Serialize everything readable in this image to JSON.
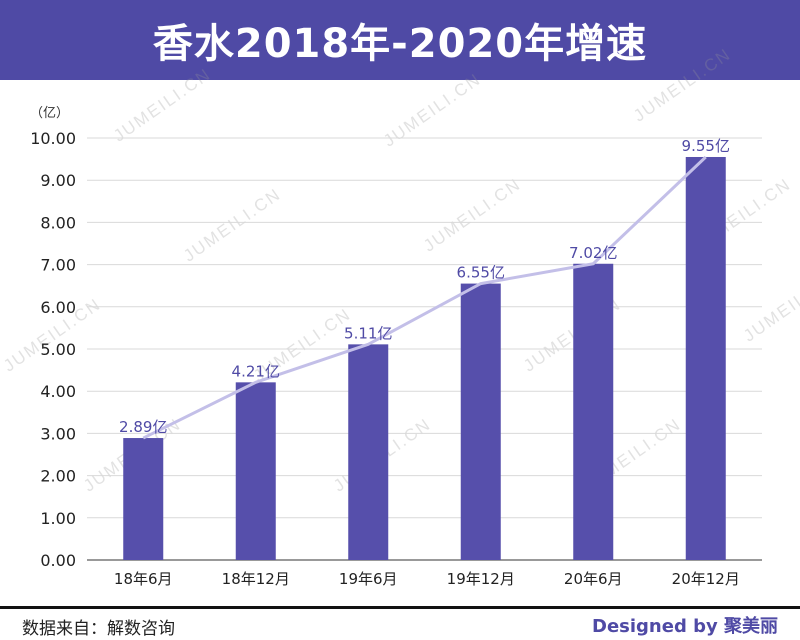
{
  "header": {
    "title": "香水2018年-2020年增速"
  },
  "footer": {
    "source": "数据来自：解数咨询",
    "designed_by": "Designed by 聚美丽"
  },
  "watermark": "JUMEILI.CN",
  "colors": {
    "bar": "#564fab",
    "line": "#c3bfe8",
    "label": "#4f4aa5",
    "banner": "#4f4aa5"
  },
  "chart_data": {
    "type": "bar",
    "unit_label": "（亿）",
    "categories": [
      "18年6月",
      "18年12月",
      "19年6月",
      "19年12月",
      "20年6月",
      "20年12月"
    ],
    "values": [
      2.89,
      4.21,
      5.11,
      6.55,
      7.02,
      9.55
    ],
    "data_labels": [
      "2.89亿",
      "4.21亿",
      "5.11亿",
      "6.55亿",
      "7.02亿",
      "9.55亿"
    ],
    "overlay_line": true,
    "ylim": [
      0,
      10
    ],
    "yticks": [
      "0.00",
      "1.00",
      "2.00",
      "3.00",
      "4.00",
      "5.00",
      "6.00",
      "7.00",
      "8.00",
      "9.00",
      "10.00"
    ],
    "grid": true,
    "legend": "none"
  }
}
